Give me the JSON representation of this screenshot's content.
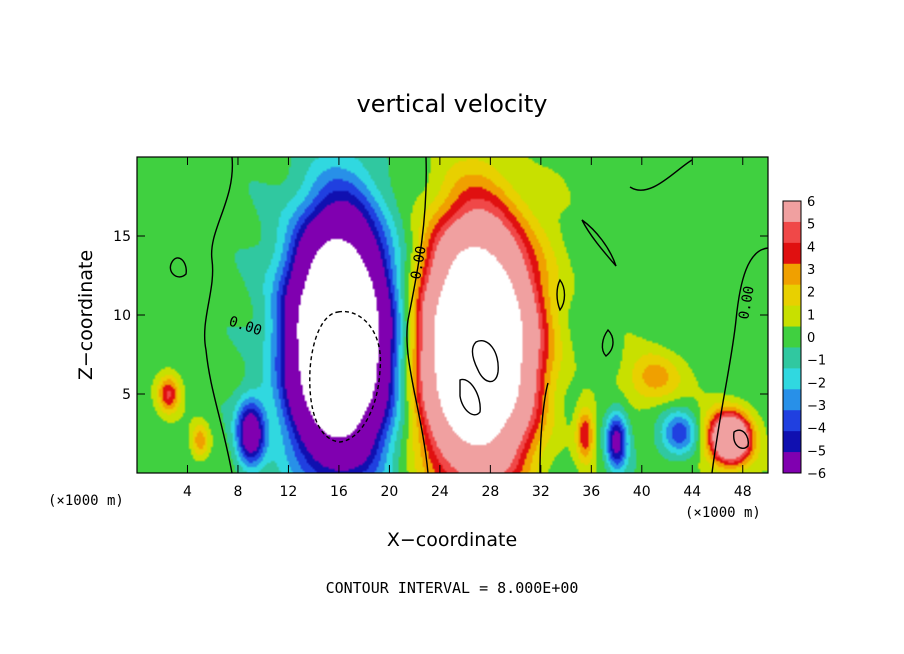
{
  "chart_data": {
    "type": "heatmap",
    "title": "vertical velocity",
    "xlabel": "X−coordinate",
    "ylabel": "Z−coordinate",
    "x_unit_left": "(×1000 m)",
    "x_unit_right": "(×1000 m)",
    "footer": "CONTOUR INTERVAL = 8.000E+00",
    "xlim": [
      0,
      50
    ],
    "ylim": [
      0,
      20
    ],
    "x_ticks": [
      "4",
      "8",
      "12",
      "16",
      "20",
      "24",
      "28",
      "32",
      "36",
      "40",
      "44",
      "48"
    ],
    "y_ticks": [
      "5",
      "10",
      "15"
    ],
    "colorbar": {
      "labels": [
        "6",
        "5",
        "4",
        "3",
        "2",
        "1",
        "0",
        "−1",
        "−2",
        "−3",
        "−4",
        "−5",
        "−6"
      ],
      "range": [
        -6,
        6
      ],
      "colors": [
        "#f0a0a0",
        "#f04848",
        "#e01010",
        "#f0a000",
        "#e8d000",
        "#c8e000",
        "#40d040",
        "#30c8a0",
        "#30d8e0",
        "#2890e8",
        "#2040e0",
        "#1010b0",
        "#8000b0"
      ]
    },
    "contour_labels": [
      "0.00",
      "0.00",
      "0.00"
    ],
    "features": [
      {
        "kind": "downdraft",
        "x": 16,
        "z": 8.5,
        "sx": 2.6,
        "sz": 5,
        "amp": -22
      },
      {
        "kind": "updraft",
        "x": 27,
        "z": 8,
        "sx": 2.8,
        "sz": 5,
        "amp": 22
      },
      {
        "kind": "downdraft",
        "x": 9,
        "z": 2.5,
        "sx": 0.8,
        "sz": 1.5,
        "amp": -7
      },
      {
        "kind": "updraft",
        "x": 47,
        "z": 2.2,
        "sx": 1.2,
        "sz": 1.2,
        "amp": 10
      },
      {
        "kind": "downdraft",
        "x": 38,
        "z": 2,
        "sx": 0.6,
        "sz": 1.3,
        "amp": -6
      },
      {
        "kind": "downdraft",
        "x": 43,
        "z": 2.5,
        "sx": 1,
        "sz": 1,
        "amp": -4
      },
      {
        "kind": "updraft",
        "x": 2.5,
        "z": 5,
        "sx": 0.6,
        "sz": 0.8,
        "amp": 4
      },
      {
        "kind": "updraft",
        "x": 5,
        "z": 2,
        "sx": 0.5,
        "sz": 0.8,
        "amp": 3
      },
      {
        "kind": "updraft",
        "x": 35.5,
        "z": 2.5,
        "sx": 0.5,
        "sz": 1.2,
        "amp": 4
      },
      {
        "kind": "updraft",
        "x": 41,
        "z": 6,
        "sx": 1.5,
        "sz": 1.2,
        "amp": 3
      }
    ]
  }
}
